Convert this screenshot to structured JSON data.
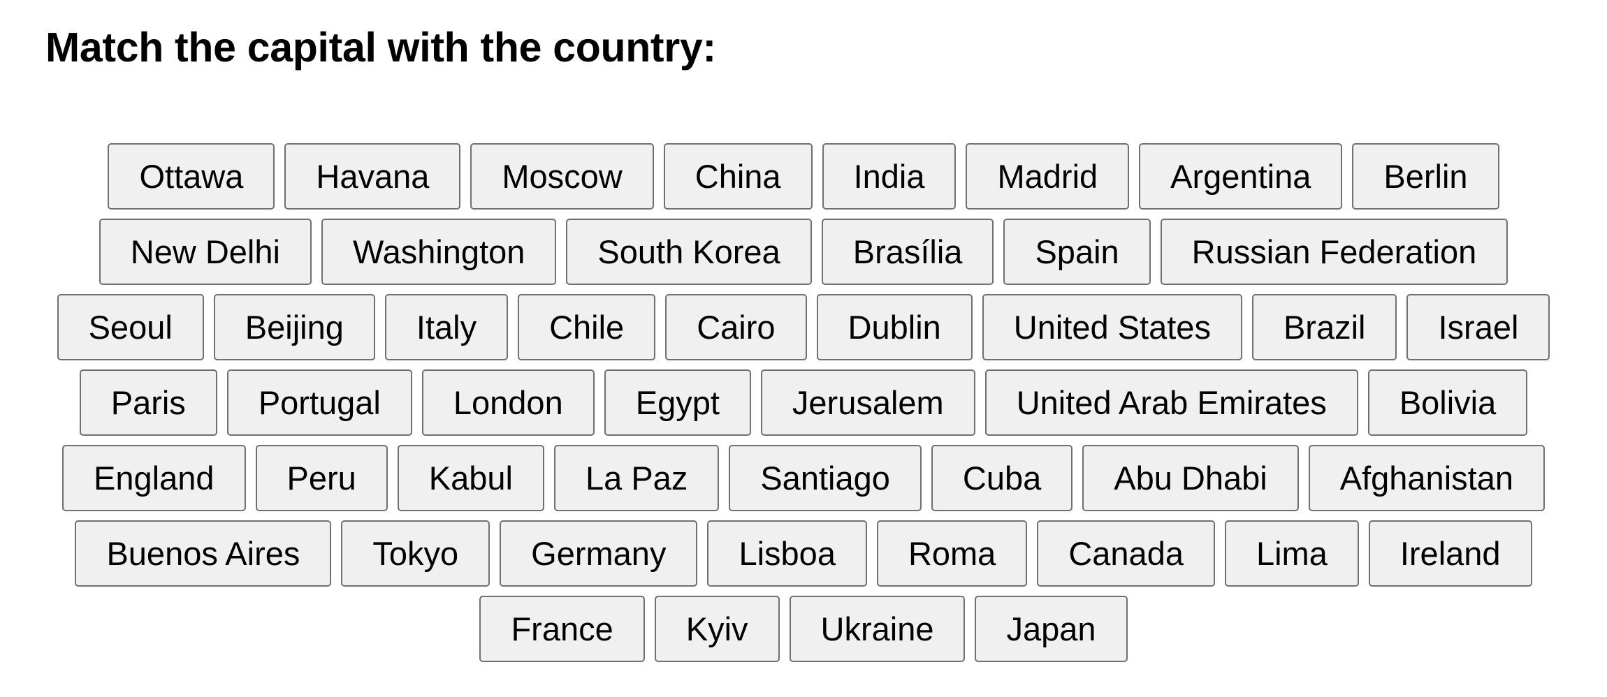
{
  "header": {
    "title": "Match the capital with the country:"
  },
  "board": {
    "rows": [
      [
        "Ottawa",
        "Havana",
        "Moscow",
        "China",
        "India",
        "Madrid",
        "Argentina",
        "Berlin"
      ],
      [
        "New Delhi",
        "Washington",
        "South Korea",
        "Brasília",
        "Spain",
        "Russian Federation"
      ],
      [
        "Seoul",
        "Beijing",
        "Italy",
        "Chile",
        "Cairo",
        "Dublin",
        "United States",
        "Brazil",
        "Israel"
      ],
      [
        "Paris",
        "Portugal",
        "London",
        "Egypt",
        "Jerusalem",
        "United Arab Emirates",
        "Bolivia"
      ],
      [
        "England",
        "Peru",
        "Kabul",
        "La Paz",
        "Santiago",
        "Cuba",
        "Abu Dhabi",
        "Afghanistan"
      ],
      [
        "Buenos Aires",
        "Tokyo",
        "Germany",
        "Lisboa",
        "Roma",
        "Canada",
        "Lima",
        "Ireland"
      ],
      [
        "France",
        "Kyiv",
        "Ukraine",
        "Japan"
      ]
    ]
  },
  "colors": {
    "tile_background": "#f0f0f0",
    "tile_border": "#707070",
    "text": "#000000"
  }
}
